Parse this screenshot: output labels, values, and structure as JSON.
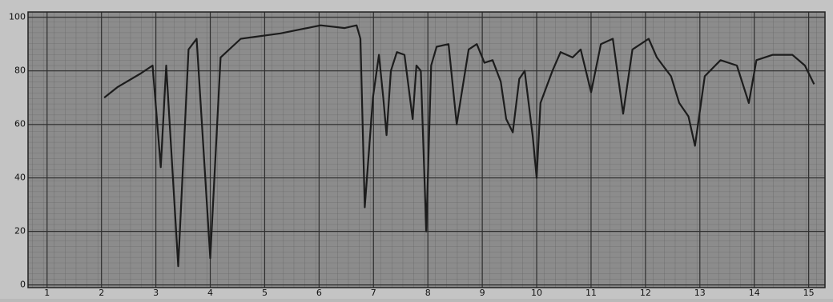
{
  "chart_data": {
    "type": "line",
    "color": "#1c1c1c",
    "grid": true,
    "x": [
      2.05,
      2.3,
      2.72,
      2.94,
      3.09,
      3.19,
      3.41,
      3.6,
      3.75,
      4.0,
      4.19,
      4.56,
      5.29,
      6.03,
      6.47,
      6.69,
      6.76,
      6.84,
      6.99,
      7.1,
      7.18,
      7.24,
      7.32,
      7.43,
      7.57,
      7.72,
      7.79,
      7.87,
      7.97,
      8.06,
      8.16,
      8.38,
      8.53,
      8.75,
      8.9,
      9.04,
      9.19,
      9.34,
      9.44,
      9.56,
      9.68,
      9.78,
      9.93,
      10.0,
      10.07,
      10.29,
      10.44,
      10.66,
      10.81,
      11.0,
      11.18,
      11.4,
      11.59,
      11.76,
      12.06,
      12.21,
      12.32,
      12.47,
      12.62,
      12.79,
      12.91,
      13.09,
      13.38,
      13.68,
      13.9,
      14.04,
      14.34,
      14.7,
      14.93,
      15.1
    ],
    "values": [
      70,
      74,
      79,
      82,
      44,
      82,
      7,
      88,
      92,
      10,
      85,
      92,
      94,
      97,
      96,
      97,
      92,
      29,
      70,
      86,
      70,
      56,
      80,
      87,
      86,
      62,
      82,
      80,
      20,
      82,
      89,
      90,
      60,
      88,
      90,
      83,
      84,
      76,
      62,
      57,
      77,
      80,
      55,
      40,
      68,
      80,
      87,
      85,
      88,
      72,
      90,
      92,
      64,
      88,
      92,
      85,
      82,
      78,
      68,
      63,
      52,
      78,
      84,
      82,
      68,
      84,
      86,
      86,
      82,
      75
    ],
    "xlim": [
      0.65,
      15.3
    ],
    "ylim": [
      -1,
      102
    ],
    "xticks": [
      1,
      2,
      3,
      4,
      5,
      6,
      7,
      8,
      9,
      10,
      11,
      12,
      13,
      14,
      15
    ],
    "yticks": [
      0,
      20,
      40,
      60,
      80,
      100
    ]
  }
}
